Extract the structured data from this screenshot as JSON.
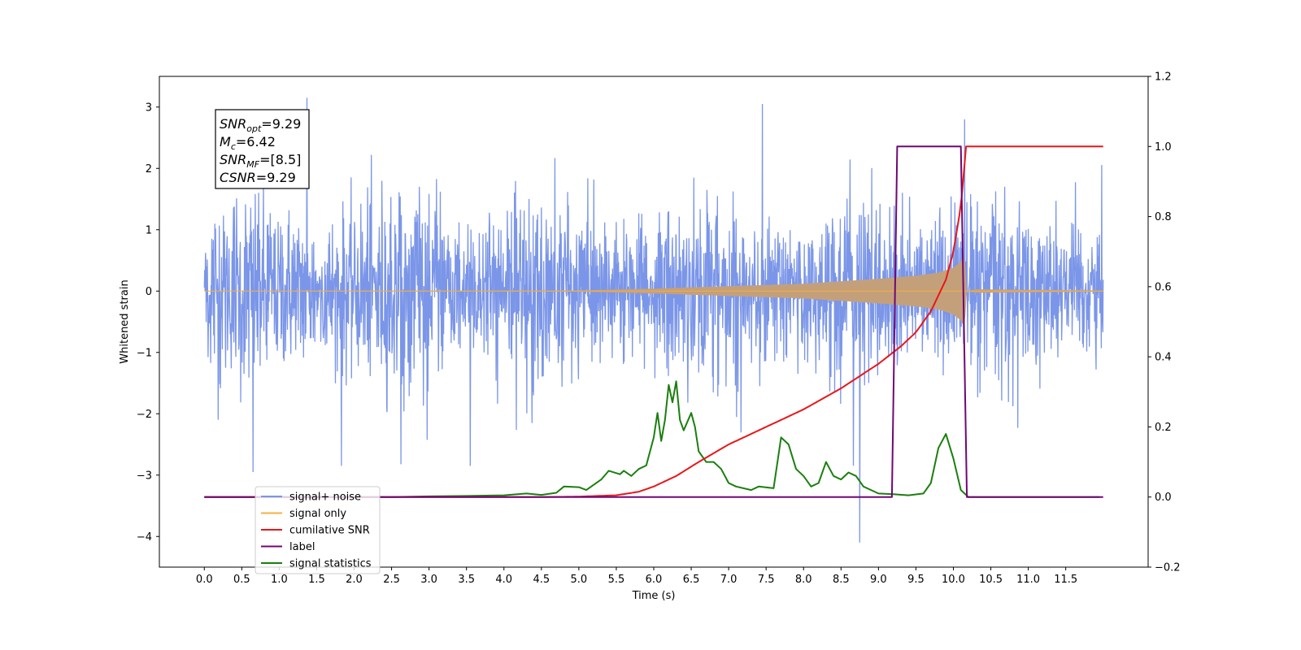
{
  "chart_data": {
    "type": "line",
    "title": "",
    "xlabel": "Time (s)",
    "ylabel": "Whitened strain",
    "xlim": [
      -0.6,
      12.6
    ],
    "ylim": [
      -4.5,
      3.5
    ],
    "ylim_right": [
      -0.2,
      1.2
    ],
    "x_ticks": [
      "0.0",
      "0.5",
      "1.0",
      "1.5",
      "2.0",
      "2.5",
      "3.0",
      "3.5",
      "4.0",
      "4.5",
      "5.0",
      "5.5",
      "6.0",
      "6.5",
      "7.0",
      "7.5",
      "8.0",
      "8.5",
      "9.0",
      "9.5",
      "10.0",
      "10.5",
      "11.0",
      "11.5"
    ],
    "y_ticks": [
      "3",
      "2",
      "1",
      "0",
      "−1",
      "−2",
      "−3",
      "−4"
    ],
    "y_ticks_right": [
      "1.2",
      "1.0",
      "0.8",
      "0.6",
      "0.4",
      "0.2",
      "0.0",
      "−0.2"
    ],
    "grid": false,
    "legend_position": "lower-left",
    "annotation": {
      "lines": [
        {
          "base": "SNR",
          "sub": "opt",
          "value": "=9.29"
        },
        {
          "base": "M",
          "sub": "c",
          "value": "=6.42"
        },
        {
          "base": "SNR",
          "sub": "MF",
          "value": "=[8.5]"
        },
        {
          "base": "CSNR",
          "sub": "",
          "value": "=9.29"
        }
      ]
    },
    "series": [
      {
        "name": "signal+ noise",
        "axis": "left",
        "color": "#7b96e8",
        "style": "noise",
        "x_range": [
          0.0,
          12.0
        ],
        "typical_band": [
          -1.5,
          1.5
        ],
        "notable_points": [
          {
            "x": 0.65,
            "y": -2.95
          },
          {
            "x": 1.37,
            "y": 3.15
          },
          {
            "x": 1.83,
            "y": -2.85
          },
          {
            "x": 3.55,
            "y": -2.85
          },
          {
            "x": 7.45,
            "y": 3.05
          },
          {
            "x": 8.75,
            "y": -4.1
          },
          {
            "x": 10.15,
            "y": 2.8
          }
        ]
      },
      {
        "name": "signal only",
        "axis": "left",
        "color": "#f5b041",
        "style": "chirp",
        "chirp_fill": "#c4a07a",
        "envelope": [
          [
            0.0,
            0.0
          ],
          [
            5.0,
            0.01
          ],
          [
            6.0,
            0.04
          ],
          [
            7.0,
            0.08
          ],
          [
            8.0,
            0.12
          ],
          [
            9.0,
            0.2
          ],
          [
            9.5,
            0.25
          ],
          [
            9.8,
            0.3
          ],
          [
            10.0,
            0.38
          ],
          [
            10.1,
            0.48
          ],
          [
            10.15,
            0.6
          ],
          [
            10.18,
            0.0
          ],
          [
            10.3,
            0.03
          ],
          [
            11.0,
            0.02
          ],
          [
            12.0,
            0.01
          ]
        ]
      },
      {
        "name": "cumilative SNR",
        "axis": "right",
        "color": "#e8161a",
        "points": [
          [
            0.0,
            0.0
          ],
          [
            4.5,
            0.0
          ],
          [
            5.0,
            0.001
          ],
          [
            5.5,
            0.005
          ],
          [
            5.8,
            0.015
          ],
          [
            6.0,
            0.03
          ],
          [
            6.3,
            0.06
          ],
          [
            6.6,
            0.1
          ],
          [
            7.0,
            0.15
          ],
          [
            7.5,
            0.2
          ],
          [
            8.0,
            0.25
          ],
          [
            8.5,
            0.31
          ],
          [
            9.0,
            0.38
          ],
          [
            9.3,
            0.43
          ],
          [
            9.5,
            0.47
          ],
          [
            9.7,
            0.53
          ],
          [
            9.9,
            0.62
          ],
          [
            10.0,
            0.7
          ],
          [
            10.1,
            0.83
          ],
          [
            10.17,
            1.0
          ],
          [
            12.0,
            1.0
          ]
        ]
      },
      {
        "name": "label",
        "axis": "right",
        "color": "#700774",
        "points": [
          [
            0.0,
            0.0
          ],
          [
            9.18,
            0.0
          ],
          [
            9.25,
            1.0
          ],
          [
            10.1,
            1.0
          ],
          [
            10.18,
            0.0
          ],
          [
            12.0,
            0.0
          ]
        ]
      },
      {
        "name": "signal statistics",
        "axis": "right",
        "color": "#1a7f0e",
        "points": [
          [
            0.0,
            0.0
          ],
          [
            2.5,
            0.0
          ],
          [
            3.0,
            0.002
          ],
          [
            3.5,
            0.003
          ],
          [
            4.0,
            0.005
          ],
          [
            4.3,
            0.01
          ],
          [
            4.5,
            0.006
          ],
          [
            4.7,
            0.012
          ],
          [
            4.8,
            0.03
          ],
          [
            5.0,
            0.028
          ],
          [
            5.1,
            0.02
          ],
          [
            5.3,
            0.05
          ],
          [
            5.4,
            0.075
          ],
          [
            5.55,
            0.065
          ],
          [
            5.6,
            0.075
          ],
          [
            5.7,
            0.06
          ],
          [
            5.8,
            0.08
          ],
          [
            5.9,
            0.09
          ],
          [
            6.0,
            0.17
          ],
          [
            6.05,
            0.24
          ],
          [
            6.1,
            0.16
          ],
          [
            6.15,
            0.22
          ],
          [
            6.2,
            0.32
          ],
          [
            6.25,
            0.27
          ],
          [
            6.3,
            0.33
          ],
          [
            6.35,
            0.22
          ],
          [
            6.4,
            0.19
          ],
          [
            6.5,
            0.24
          ],
          [
            6.55,
            0.2
          ],
          [
            6.6,
            0.13
          ],
          [
            6.7,
            0.1
          ],
          [
            6.8,
            0.1
          ],
          [
            6.9,
            0.08
          ],
          [
            7.0,
            0.04
          ],
          [
            7.1,
            0.03
          ],
          [
            7.3,
            0.02
          ],
          [
            7.4,
            0.03
          ],
          [
            7.6,
            0.025
          ],
          [
            7.7,
            0.17
          ],
          [
            7.8,
            0.15
          ],
          [
            7.9,
            0.08
          ],
          [
            8.0,
            0.06
          ],
          [
            8.1,
            0.03
          ],
          [
            8.2,
            0.04
          ],
          [
            8.3,
            0.1
          ],
          [
            8.4,
            0.06
          ],
          [
            8.5,
            0.05
          ],
          [
            8.6,
            0.07
          ],
          [
            8.7,
            0.06
          ],
          [
            8.8,
            0.03
          ],
          [
            8.9,
            0.02
          ],
          [
            9.0,
            0.01
          ],
          [
            9.2,
            0.008
          ],
          [
            9.4,
            0.005
          ],
          [
            9.6,
            0.01
          ],
          [
            9.7,
            0.04
          ],
          [
            9.8,
            0.14
          ],
          [
            9.9,
            0.18
          ],
          [
            10.0,
            0.11
          ],
          [
            10.1,
            0.02
          ],
          [
            10.2,
            0.0
          ],
          [
            11.95,
            0.0
          ]
        ]
      }
    ]
  }
}
